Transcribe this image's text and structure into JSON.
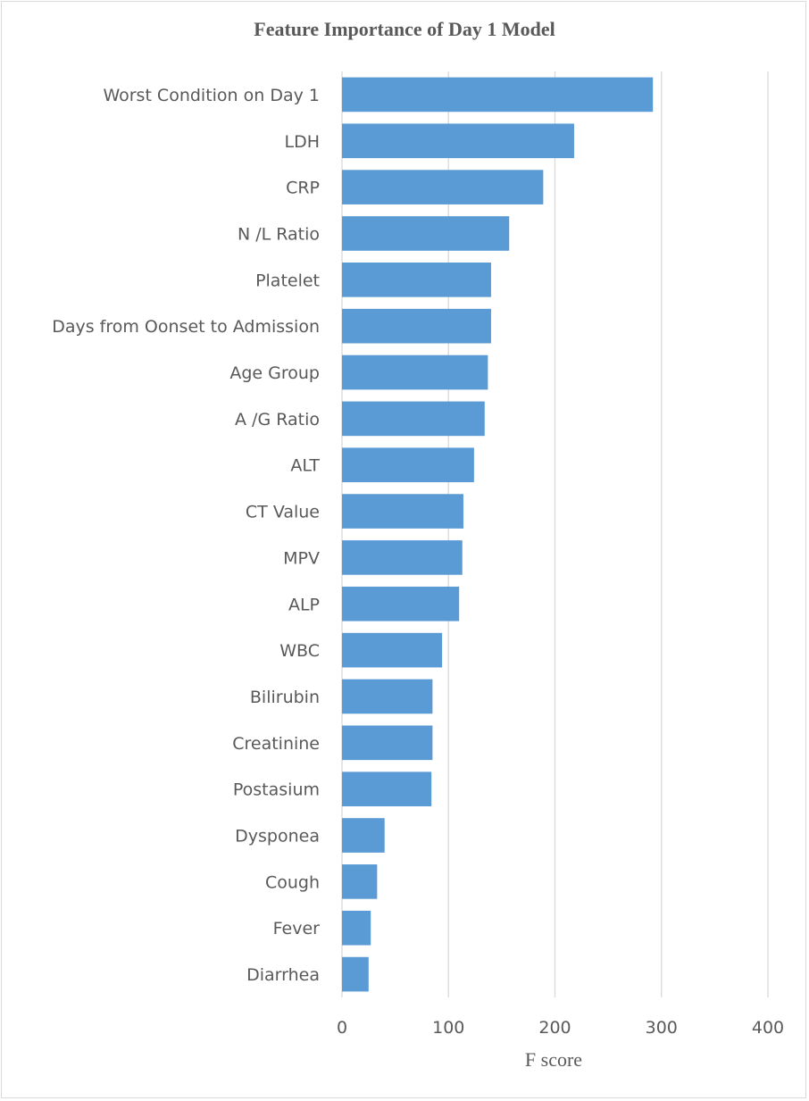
{
  "chart_data": {
    "type": "bar",
    "orientation": "horizontal",
    "title": "Feature Importance of Day 1 Model",
    "xlabel": "F score",
    "ylabel": "",
    "xlim": [
      0,
      400
    ],
    "xticks": [
      0,
      100,
      200,
      300,
      400
    ],
    "grid": true,
    "bar_color": "#5b9bd5",
    "categories": [
      "Worst Condition on Day 1",
      "LDH",
      "CRP",
      "N /L Ratio",
      "Platelet",
      "Days from Oonset to Admission",
      "Age Group",
      "A /G Ratio",
      "ALT",
      "CT Value",
      "MPV",
      "ALP",
      "WBC",
      "Bilirubin",
      "Creatinine",
      "Postasium",
      "Dysponea",
      "Cough",
      "Fever",
      "Diarrhea"
    ],
    "values": [
      292,
      218,
      189,
      157,
      140,
      140,
      137,
      134,
      124,
      114,
      113,
      110,
      94,
      85,
      85,
      84,
      40,
      33,
      27,
      25
    ]
  }
}
